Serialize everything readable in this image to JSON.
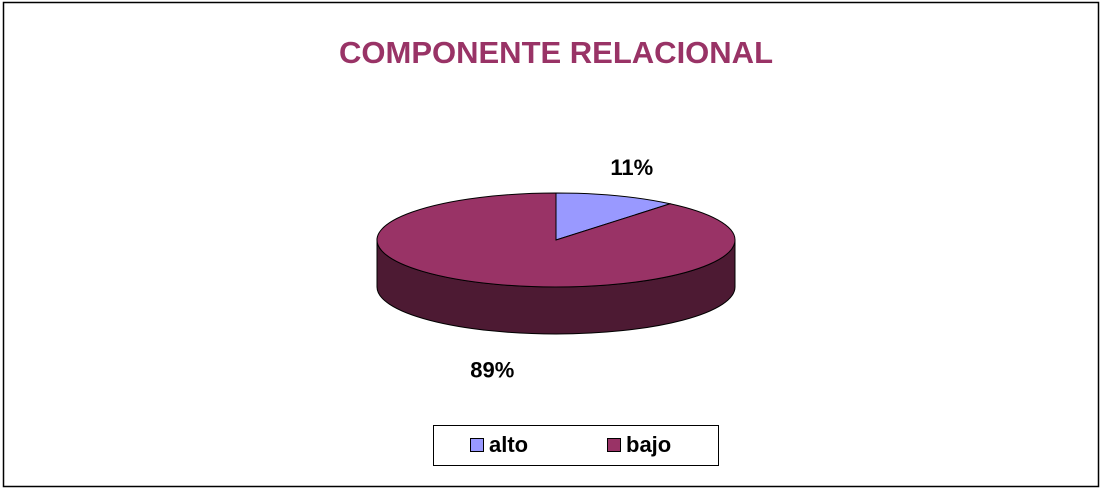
{
  "chart_data": {
    "type": "pie",
    "title": "COMPONENTE RELACIONAL",
    "categories": [
      "alto",
      "bajo"
    ],
    "values": [
      11,
      89
    ],
    "value_labels": [
      "11%",
      "89%"
    ],
    "colors": [
      "#9999ff",
      "#993366"
    ],
    "legend": "bottom"
  }
}
